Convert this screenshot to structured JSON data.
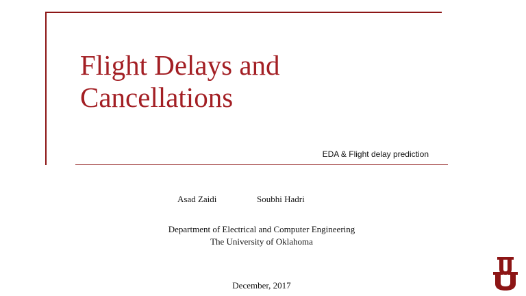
{
  "slide": {
    "title_line1": "Flight Delays and",
    "title_line2": "Cancellations",
    "subtitle": "EDA & Flight delay prediction",
    "authors": [
      "Asad Zaidi",
      "Soubhi Hadri"
    ],
    "department": "Department of Electrical and Computer Engineering",
    "university": "The University of Oklahoma",
    "date": "December, 2017"
  },
  "colors": {
    "accent": "#a31f24",
    "frame": "#8c1515"
  },
  "logo": {
    "icon": "ou-logo-icon",
    "text": "OU"
  }
}
